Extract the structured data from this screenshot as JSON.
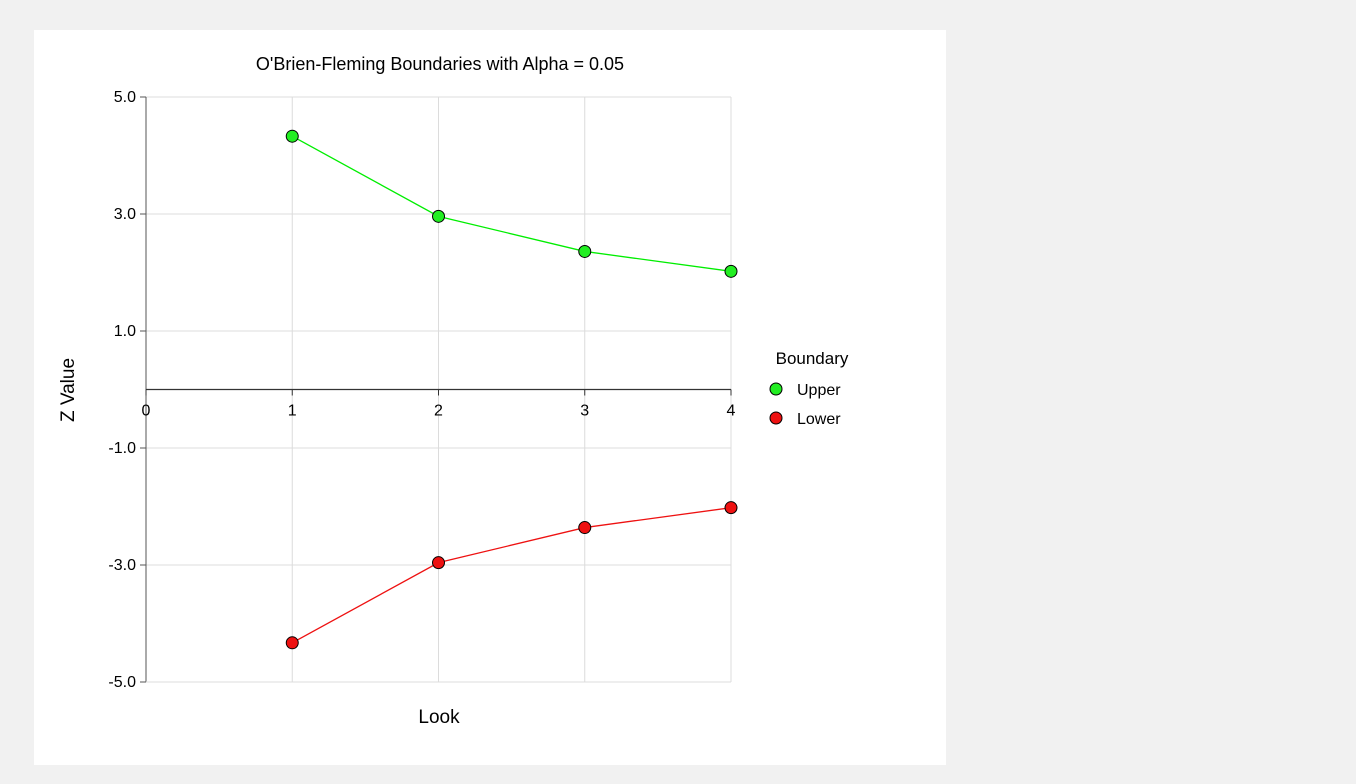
{
  "chart_data": {
    "type": "line",
    "title": "O'Brien-Fleming Boundaries with Alpha = 0.05",
    "xlabel": "Look",
    "ylabel": "Z Value",
    "x": [
      1,
      2,
      3,
      4
    ],
    "xlim": [
      0,
      4
    ],
    "ylim": [
      -5,
      5
    ],
    "xticks": [
      0,
      1,
      2,
      3,
      4
    ],
    "yticks": [
      5.0,
      3.0,
      1.0,
      -1.0,
      -3.0,
      -5.0
    ],
    "ytick_labels": [
      "5.0",
      "3.0",
      "1.0",
      "-1.0",
      "-3.0",
      "-5.0"
    ],
    "grid": true,
    "legend": {
      "title": "Boundary",
      "placement": "right"
    },
    "series": [
      {
        "name": "Upper",
        "values": [
          4.33,
          2.96,
          2.36,
          2.02
        ],
        "color": "#00ee00",
        "marker_color": "#22ee22"
      },
      {
        "name": "Lower",
        "values": [
          -4.33,
          -2.96,
          -2.36,
          -2.02
        ],
        "color": "#ee1111",
        "marker_color": "#ee1111"
      }
    ]
  }
}
